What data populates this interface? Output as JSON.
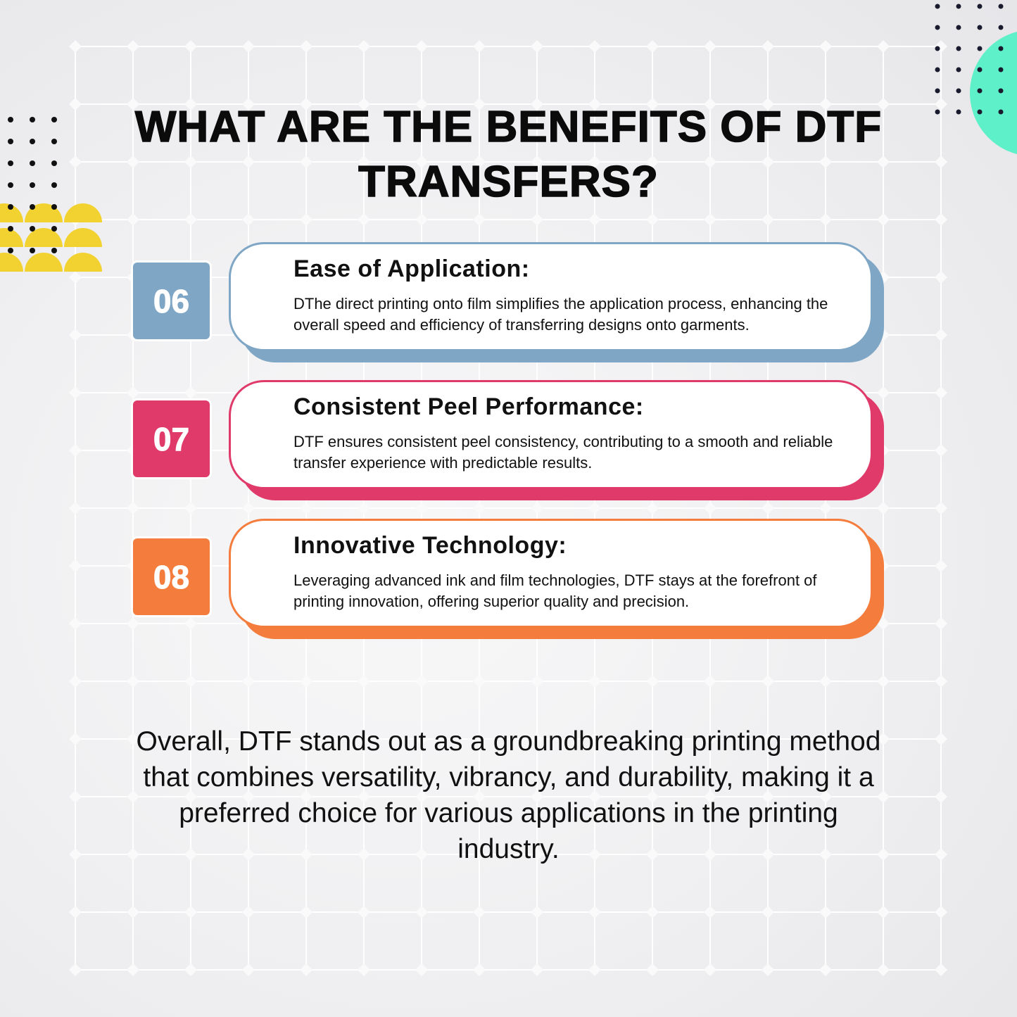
{
  "title": "WHAT ARE THE BENEFITS OF DTF TRANSFERS?",
  "colors": {
    "blue": "#7fa7c5",
    "pink": "#e03a6a",
    "orange": "#f47c3c",
    "teal": "#5ef0c8",
    "yellow": "#f2d230"
  },
  "benefits": [
    {
      "number": "06",
      "heading": "Ease of Application:",
      "text": "DThe direct printing onto film simplifies the application process, enhancing the overall speed and efficiency of transferring designs onto garments."
    },
    {
      "number": "07",
      "heading": "Consistent Peel Performance:",
      "text": "DTF ensures consistent peel consistency, contributing to a smooth and reliable transfer experience with predictable results."
    },
    {
      "number": "08",
      "heading": "Innovative Technology:",
      "text": "Leveraging advanced ink and film technologies, DTF stays at the forefront of printing innovation, offering superior quality and precision."
    }
  ],
  "summary": "Overall, DTF stands out as a groundbreaking printing method that combines versatility, vibrancy, and durability, making it a preferred choice for various applications in the printing industry."
}
